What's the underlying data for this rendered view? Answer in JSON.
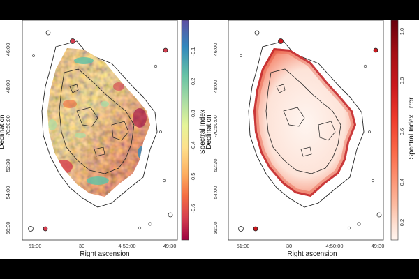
{
  "panels": [
    {
      "id": "left",
      "y_axis_label": "Declination",
      "x_axis_label": "Right ascension",
      "y_ticks": [
        "46:00",
        "48:00",
        "-70:50:00",
        "52:30",
        "54:00",
        "56:00"
      ],
      "x_ticks": [
        "51:00",
        "30",
        "4:50:00",
        "49:30"
      ],
      "colorbar": {
        "label": "Spectral Index",
        "ticks": [
          "-0.1",
          "-0.2",
          "-0.3",
          "-0.4",
          "-0.5",
          "-0.6"
        ],
        "colors": [
          "#5e4fa2",
          "#3288bd",
          "#66c2a5",
          "#abdda4",
          "#e6f598",
          "#fee08b",
          "#fdae61",
          "#f46d43",
          "#d53e4f",
          "#9e0142"
        ]
      }
    },
    {
      "id": "right",
      "y_axis_label": "Declination",
      "x_axis_label": "Right ascension",
      "y_ticks": [
        "46:00",
        "48:00",
        "-70:50:00",
        "52:30",
        "54:00",
        "56:00"
      ],
      "x_ticks": [
        "51:00",
        "30",
        "4:50:00",
        "49:30"
      ],
      "colorbar": {
        "label": "Spectral Index Error",
        "ticks": [
          "1.0",
          "0.8",
          "0.6",
          "0.4",
          "0.2"
        ],
        "colors": [
          "#67000d",
          "#a50f15",
          "#cb181d",
          "#ef3b2c",
          "#fb6a4a",
          "#fc9272",
          "#fcbba1",
          "#fee0d2",
          "#fff5f0"
        ]
      }
    }
  ]
}
